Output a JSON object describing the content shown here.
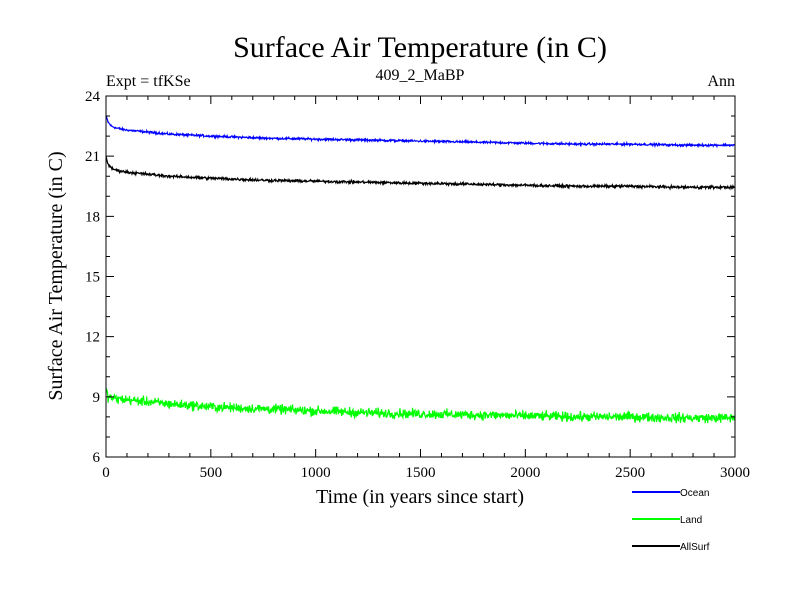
{
  "chart_data": {
    "type": "line",
    "title": "Surface Air Temperature (in C)",
    "subtitle": "409_2_MaBP",
    "left_label": "Expt = tfKSe",
    "right_label": "Ann",
    "xlabel": "Time (in years since start)",
    "ylabel": "Surface Air Temperature (in C)",
    "xlim": [
      0,
      3000
    ],
    "ylim": [
      6,
      24
    ],
    "xticks": [
      0,
      500,
      1000,
      1500,
      2000,
      2500,
      3000
    ],
    "yticks": [
      6,
      9,
      12,
      15,
      18,
      21,
      24
    ],
    "grid": false,
    "legend_position": "bottom-right",
    "x": [
      0,
      10,
      25,
      50,
      100,
      200,
      300,
      500,
      750,
      1000,
      1250,
      1500,
      1750,
      2000,
      2250,
      2500,
      2750,
      3000
    ],
    "series": [
      {
        "name": "Ocean",
        "color": "#0000ff",
        "noise": 0.08,
        "values": [
          23.0,
          22.7,
          22.5,
          22.4,
          22.3,
          22.2,
          22.1,
          22.0,
          21.9,
          21.85,
          21.8,
          21.75,
          21.7,
          21.65,
          21.6,
          21.6,
          21.55,
          21.55
        ]
      },
      {
        "name": "Land",
        "color": "#00ff00",
        "noise": 0.35,
        "values": [
          9.3,
          9.0,
          8.95,
          8.9,
          8.85,
          8.75,
          8.65,
          8.5,
          8.4,
          8.3,
          8.2,
          8.15,
          8.1,
          8.05,
          8.0,
          8.0,
          7.95,
          7.95
        ]
      },
      {
        "name": "AllSurf",
        "color": "#000000",
        "noise": 0.1,
        "values": [
          21.0,
          20.6,
          20.4,
          20.3,
          20.2,
          20.1,
          20.0,
          19.9,
          19.8,
          19.75,
          19.7,
          19.65,
          19.6,
          19.55,
          19.5,
          19.5,
          19.45,
          19.45
        ]
      }
    ]
  }
}
